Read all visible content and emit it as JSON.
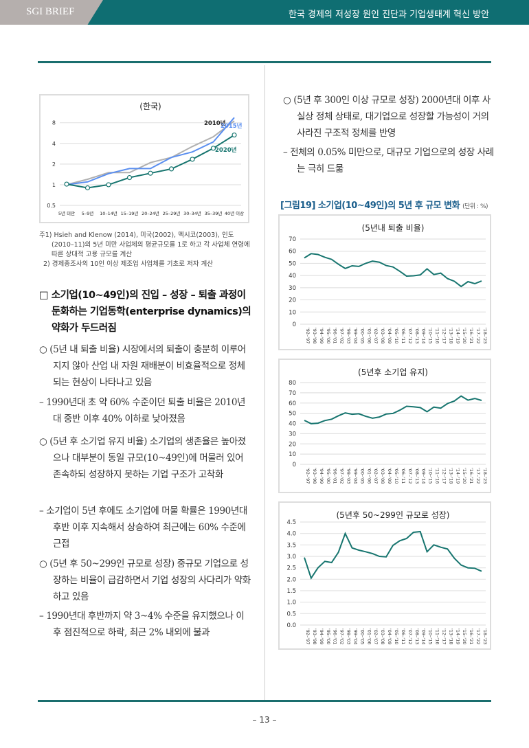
{
  "header": {
    "left": "SGI BRIEF",
    "right": "한국 경제의 저성장 원인 진단과 기업생태계 혁신 방안"
  },
  "page_number": "– 13 –",
  "left": {
    "notes": [
      "주1) Hsieh and Klenow (2014), 미국(2002), 멕시코(2003), 인도(2010–11)의 5년 미만 사업체의 평균규모를 1로 하고 각 사업체 연령에 따른 상대적 고용 규모를 계산",
      "2) 경제총조사의 10인 이상 제조업 사업체를 기초로 저자 계산"
    ],
    "section_heading": "□ 소기업(10~49인)의 진입 – 성장 – 퇴출 과정이 둔화하는 기업동학(enterprise dynamics)의 약화가 두드러짐",
    "paragraphs": [
      "○ (5년 내 퇴출 비율) 시장에서의 퇴출이 충분히 이루어지지 않아 산업 내 자원 재배분이 비효율적으로 정체되는 현상이 나타나고 있음",
      "– 1990년대 초 약 60% 수준이던 퇴출 비율은 2010년대 중반 이후 40% 이하로 낮아졌음",
      "○ (5년 후 소기업 유지 비율) 소기업의 생존율은 높아졌으나 대부분이 동일 규모(10~49인)에 머물러 있어 존속하되 성장하지 못하는 기업 구조가 고착화",
      "– 소기업이 5년 후에도 소기업에 머물 확률은 1990년대 후반 이후 지속해서 상승하여 최근에는 60% 수준에 근접",
      "○ (5년 후 50~299인 규모로 성장) 중규모 기업으로 성장하는 비율이 급감하면서 기업 성장의 사다리가 약화하고 있음",
      "– 1990년대 후반까지 약 3~4% 수준을 유지했으나 이후 점진적으로 하락, 최근 2% 내외에 불과"
    ]
  },
  "right": {
    "paragraphs": [
      "○ (5년 후 300인 이상 규모로 성장) 2000년대 이후 사실상 정체 상태로, 대기업으로 성장할 가능성이 거의 사라진 구조적 정체를 반영",
      "– 전체의 0.05% 미만으로, 대규모 기업으로의 성장 사례는 극히 드묾"
    ],
    "figure_title": "[그림19] 소기업(10~49인)의 5년 후 규모 변화",
    "figure_unit": "(단위 : %)"
  },
  "chart_data": [
    {
      "type": "line",
      "title": "(한국)",
      "yscale": "log",
      "ylim": [
        0.5,
        10
      ],
      "yticks": [
        0.5,
        1,
        2,
        4,
        8
      ],
      "ytick_labels": [
        "0.5",
        "1",
        "2",
        "4",
        "8"
      ],
      "grid": true,
      "categories": [
        "5년 미만",
        "5–9년",
        "10–14년",
        "15–19년",
        "20–24년",
        "25–29년",
        "30–34년",
        "35–39년",
        "40년 이상"
      ],
      "series": [
        {
          "name": "2010년",
          "color": "#b0b0b0",
          "values": [
            1.0,
            1.2,
            1.5,
            1.5,
            2.1,
            2.5,
            3.6,
            5.0,
            8.5
          ]
        },
        {
          "name": "2015년",
          "color": "#5b8ff0",
          "values": [
            1.0,
            1.1,
            1.45,
            1.72,
            1.72,
            2.5,
            3.0,
            4.2,
            9.5
          ]
        },
        {
          "name": "2020년",
          "color": "#17756f",
          "markers": true,
          "values": [
            1.02,
            0.9,
            1.0,
            1.27,
            1.47,
            1.7,
            2.35,
            3.4,
            5.3
          ]
        }
      ]
    },
    {
      "type": "line",
      "title": "(5년내 퇴출 비율)",
      "ylim": [
        0,
        70
      ],
      "yticks": [
        0,
        10,
        20,
        30,
        40,
        50,
        60,
        70
      ],
      "ytick_labels": [
        "0",
        "10",
        "20",
        "30",
        "40",
        "50",
        "60",
        "70"
      ],
      "grid": true,
      "categories": [
        "'92–'97",
        "'93–'98",
        "'94–'99",
        "'95–'00",
        "'96–'01",
        "'97–'02",
        "'98–'03",
        "'99–'04",
        "'00–'05",
        "'01–'06",
        "'02–'07",
        "'03–'08",
        "'04–'09",
        "'05–'10",
        "'06–'11",
        "'07–'12",
        "'08–'13",
        "'09–'14",
        "'10–'15",
        "'11–'16",
        "'12–'17",
        "'13–'18",
        "'14–'19",
        "'15–'20",
        "'16–'21",
        "'17–'22",
        "'18–'23"
      ],
      "series": [
        {
          "color": "#17756f",
          "values": [
            54.5,
            58,
            57.3,
            55,
            53.3,
            49.3,
            45.8,
            48,
            47.5,
            50,
            51.8,
            51,
            48.2,
            47,
            43.5,
            39.5,
            39.8,
            40.5,
            45.5,
            40.8,
            42,
            37.5,
            35.3,
            31,
            35,
            33.3,
            35.5
          ]
        }
      ]
    },
    {
      "type": "line",
      "title": "(5년후 소기업 유지)",
      "ylim": [
        0,
        80
      ],
      "yticks": [
        0,
        10,
        20,
        30,
        40,
        50,
        60,
        70,
        80
      ],
      "ytick_labels": [
        "0",
        "10",
        "20",
        "30",
        "40",
        "50",
        "60",
        "70",
        "80"
      ],
      "grid": true,
      "categories": [
        "'92–'97",
        "'93–'98",
        "'94–'99",
        "'95–'00",
        "'96–'01",
        "'97–'02",
        "'98–'03",
        "'99–'04",
        "'00–'05",
        "'01–'06",
        "'02–'07",
        "'03–'08",
        "'04–'09",
        "'05–'10",
        "'06–'11",
        "'07–'12",
        "'08–'13",
        "'09–'14",
        "'10–'15",
        "'11–'16",
        "'12–'17",
        "'13–'18",
        "'14–'19",
        "'15–'20",
        "'16–'21",
        "'17–'22",
        "'18–'23"
      ],
      "series": [
        {
          "color": "#17756f",
          "values": [
            43,
            39.8,
            40.3,
            42.8,
            44.2,
            47.5,
            50.3,
            49,
            49.5,
            47,
            45.2,
            46.3,
            49.2,
            49.8,
            53,
            56.8,
            56.3,
            55.5,
            51.5,
            56,
            55,
            59.5,
            62,
            66.8,
            62.8,
            64.5,
            62.5
          ]
        }
      ]
    },
    {
      "type": "line",
      "title": "(5년후 50~299인 규모로 성장)",
      "ylim": [
        0,
        4.5
      ],
      "yticks": [
        0,
        0.5,
        1,
        1.5,
        2,
        2.5,
        3,
        3.5,
        4,
        4.5
      ],
      "ytick_labels": [
        "0.0",
        "0.5",
        "1.0",
        "1.5",
        "2.0",
        "2.5",
        "3.0",
        "3.5",
        "4.0",
        "4.5"
      ],
      "grid": true,
      "categories": [
        "'92–'97",
        "'93–'98",
        "'94–'99",
        "'95–'00",
        "'96–'01",
        "'97–'02",
        "'98–'03",
        "'99–'04",
        "'00–'05",
        "'01–'06",
        "'02–'07",
        "'03–'08",
        "'04–'09",
        "'05–'10",
        "'06–'11",
        "'07–'12",
        "'08–'13",
        "'09–'14",
        "'10–'15",
        "'11–'16",
        "'12–'17",
        "'13–'18",
        "'14–'19",
        "'15–'20",
        "'16–'21",
        "'17–'22",
        "'18–'23"
      ],
      "series": [
        {
          "color": "#17756f",
          "values": [
            2.95,
            2.05,
            2.5,
            2.78,
            2.73,
            3.18,
            4.0,
            3.37,
            3.27,
            3.2,
            3.12,
            3.0,
            2.98,
            3.48,
            3.68,
            3.78,
            4.05,
            4.08,
            3.2,
            3.5,
            3.4,
            3.32,
            2.92,
            2.62,
            2.5,
            2.48,
            2.35
          ]
        }
      ]
    }
  ]
}
